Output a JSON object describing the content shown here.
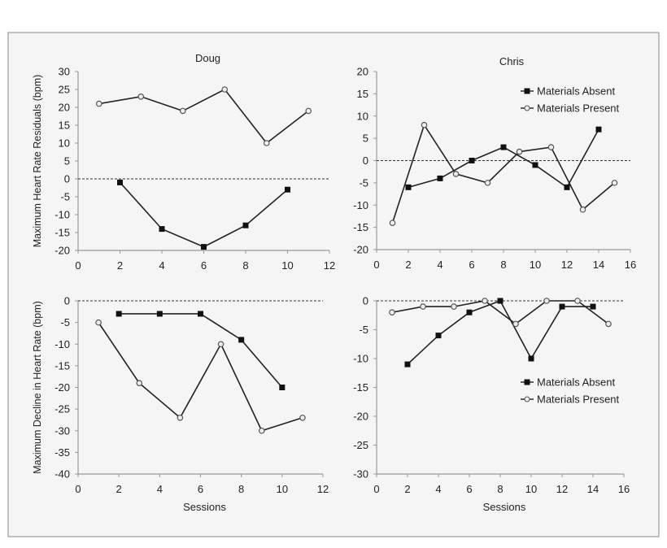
{
  "chart_data": [
    {
      "type": "line",
      "title": "Doug",
      "ylabel": "Maximum Heart Rate Residuals (bpm)",
      "xlabel": "",
      "xlim": [
        0,
        12
      ],
      "xticks": [
        0,
        2,
        4,
        6,
        8,
        10,
        12
      ],
      "ylim": [
        -20,
        30
      ],
      "yticks": [
        -20,
        -15,
        -10,
        -5,
        0,
        5,
        10,
        15,
        20,
        25,
        30
      ],
      "reference_line": 0,
      "legend": false,
      "series": [
        {
          "marker": "square",
          "x": [
            2,
            4,
            6,
            8,
            10
          ],
          "y": [
            -1,
            -14,
            -19,
            -13,
            -3
          ]
        },
        {
          "marker": "circle",
          "x": [
            1,
            3,
            5,
            7,
            9,
            11
          ],
          "y": [
            21,
            23,
            19,
            25,
            10,
            19
          ]
        }
      ]
    },
    {
      "type": "line",
      "title": "Chris",
      "ylabel": "",
      "xlabel": "",
      "xlim": [
        0,
        16
      ],
      "xticks": [
        0,
        2,
        4,
        6,
        8,
        10,
        12,
        14,
        16
      ],
      "ylim": [
        -20,
        20
      ],
      "yticks": [
        -20,
        -15,
        -10,
        -5,
        0,
        5,
        10,
        15,
        20
      ],
      "reference_line": 0,
      "legend": "top-right",
      "series": [
        {
          "name": "Materials Absent",
          "marker": "square",
          "x": [
            2,
            4,
            6,
            8,
            10,
            12,
            14
          ],
          "y": [
            -6,
            -4,
            0,
            3,
            -1,
            -6,
            7
          ]
        },
        {
          "name": "Materials Present",
          "marker": "circle",
          "x": [
            1,
            3,
            5,
            7,
            9,
            11,
            13,
            15
          ],
          "y": [
            -14,
            8,
            -3,
            -5,
            2,
            3,
            -11,
            -5
          ]
        }
      ]
    },
    {
      "type": "line",
      "title": "",
      "ylabel": "Maximum Decline in Heart Rate (bpm)",
      "xlabel": "Sessions",
      "xlim": [
        0,
        12
      ],
      "xticks": [
        0,
        2,
        4,
        6,
        8,
        10,
        12
      ],
      "ylim": [
        -40,
        0
      ],
      "yticks": [
        -40,
        -35,
        -30,
        -25,
        -20,
        -15,
        -10,
        -5,
        0
      ],
      "reference_line": 0,
      "legend": false,
      "series": [
        {
          "marker": "square",
          "x": [
            2,
            4,
            6,
            8,
            10
          ],
          "y": [
            -3,
            -3,
            -3,
            -9,
            -20
          ]
        },
        {
          "marker": "circle",
          "x": [
            1,
            3,
            5,
            7,
            9,
            11
          ],
          "y": [
            -5,
            -19,
            -27,
            -10,
            -30,
            -27
          ]
        }
      ]
    },
    {
      "type": "line",
      "title": "",
      "ylabel": "",
      "xlabel": "Sessions",
      "xlim": [
        0,
        16
      ],
      "xticks": [
        0,
        2,
        4,
        6,
        8,
        10,
        12,
        14,
        16
      ],
      "ylim": [
        -30,
        0
      ],
      "yticks": [
        -30,
        -25,
        -20,
        -15,
        -10,
        -5,
        0
      ],
      "reference_line": 0,
      "legend": "center-right",
      "series": [
        {
          "name": "Materials Absent",
          "marker": "square",
          "x": [
            2,
            4,
            6,
            8,
            10,
            12,
            14
          ],
          "y": [
            -11,
            -6,
            -2,
            0,
            -10,
            -1,
            -1
          ]
        },
        {
          "name": "Materials Present",
          "marker": "circle",
          "x": [
            1,
            3,
            5,
            7,
            9,
            11,
            13,
            15
          ],
          "y": [
            -2,
            -1,
            -1,
            0,
            -4,
            0,
            0,
            -4
          ]
        }
      ]
    }
  ],
  "colors": {
    "line": "#222222",
    "axis": "#999999",
    "background": "#f5f5f5",
    "frame": "#888888"
  }
}
